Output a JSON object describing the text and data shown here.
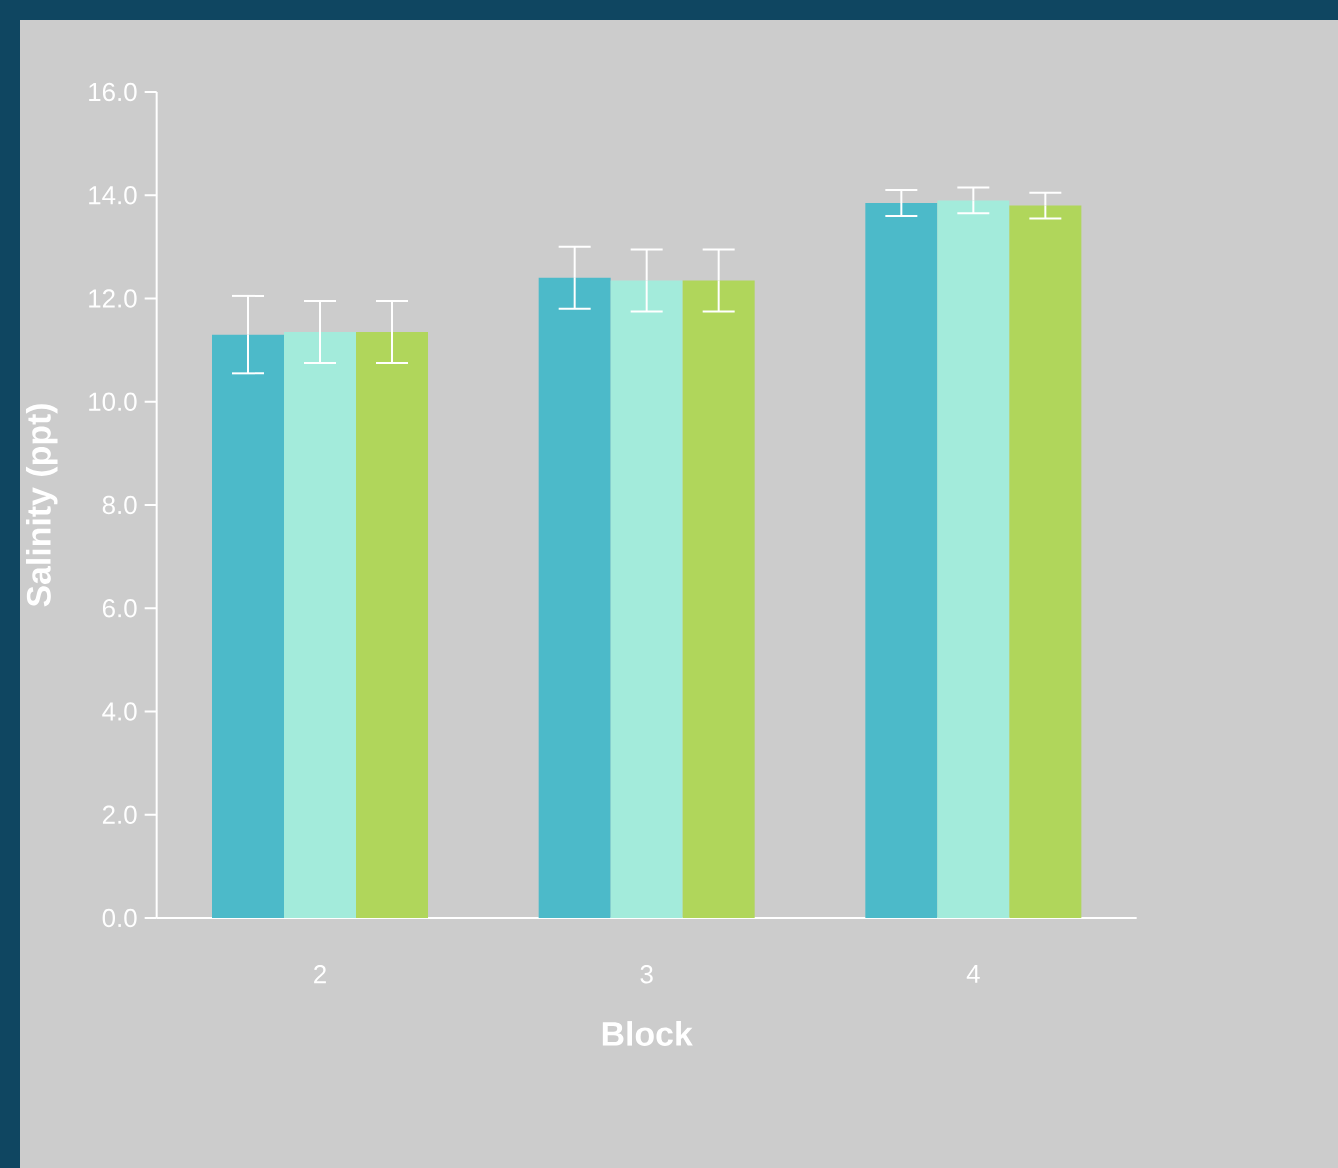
{
  "chart_data": {
    "type": "bar",
    "xlabel": "Block",
    "ylabel": "Salinity (ppt)",
    "categories": [
      "2",
      "3",
      "4"
    ],
    "series": [
      {
        "color": "#4cbac9",
        "values": [
          11.3,
          12.4,
          13.85
        ],
        "errors": [
          0.75,
          0.6,
          0.25
        ]
      },
      {
        "color": "#a3ebdb",
        "values": [
          11.35,
          12.35,
          13.9
        ],
        "errors": [
          0.6,
          0.6,
          0.25
        ]
      },
      {
        "color": "#b0d65b",
        "values": [
          11.35,
          12.35,
          13.8
        ],
        "errors": [
          0.6,
          0.6,
          0.25
        ]
      }
    ],
    "ylim": [
      0,
      16
    ],
    "yticks": [
      {
        "value": 0,
        "label": "0.0"
      },
      {
        "value": 2,
        "label": "2.0"
      },
      {
        "value": 4,
        "label": "4.0"
      },
      {
        "value": 6,
        "label": "6.0"
      },
      {
        "value": 8,
        "label": "8.0"
      },
      {
        "value": 10,
        "label": "10.0"
      },
      {
        "value": 12,
        "label": "12.0"
      },
      {
        "value": 14,
        "label": "14.0"
      },
      {
        "value": 16,
        "label": "16.0"
      }
    ]
  }
}
